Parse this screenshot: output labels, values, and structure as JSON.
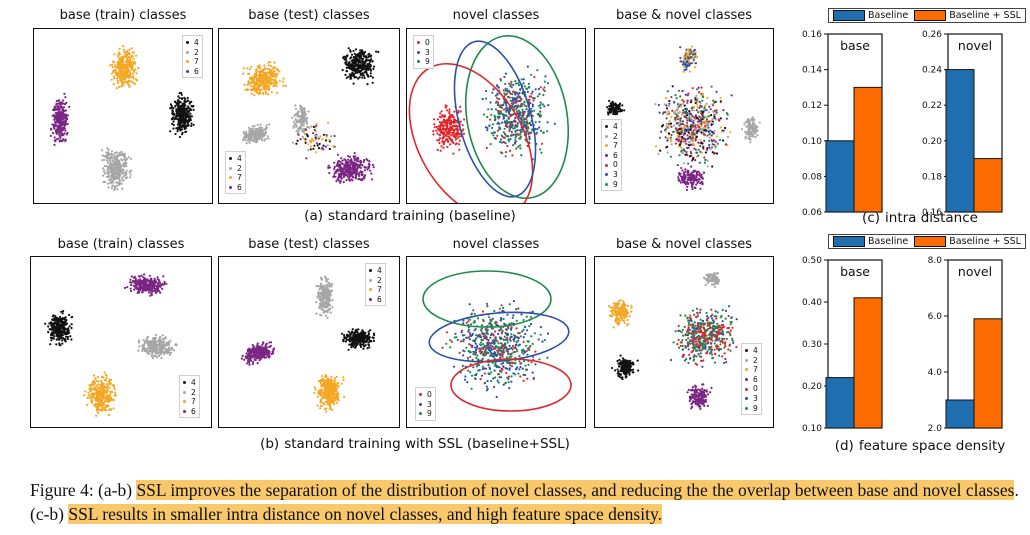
{
  "row_a": {
    "titles": [
      "base (train) classes",
      "base (test) classes",
      "novel classes",
      "base & novel classes"
    ],
    "subcaption_tag": "(a)",
    "subcaption_text": "standard training (baseline)"
  },
  "row_b": {
    "titles": [
      "base (train) classes",
      "base (test) classes",
      "novel classes",
      "base & novel classes"
    ],
    "subcaption_tag": "(b)",
    "subcaption_text": "standard training with SSL (baseline+SSL)"
  },
  "legends": {
    "base": [
      "4",
      "2",
      "7",
      "6"
    ],
    "novel": [
      "0",
      "3",
      "9"
    ],
    "all": [
      "4",
      "2",
      "7",
      "6",
      "0",
      "3",
      "9"
    ]
  },
  "class_colors": {
    "4": "#111111",
    "2": "#a6a6a6",
    "7": "#f5a623",
    "6": "#7b2585",
    "0": "#e0262c",
    "3": "#2c52a8",
    "9": "#1e8a4c"
  },
  "bar_legend": {
    "baseline": "Baseline",
    "ssl": "Baseline + SSL",
    "baseline_color": "#1f6fb0",
    "ssl_color": "#fb6b00"
  },
  "chart_c": {
    "subcaption_tag": "(c)",
    "subcaption_text": "intra distance"
  },
  "chart_d": {
    "subcaption_tag": "(d)",
    "subcaption_text": "feature space density"
  },
  "chart_data": [
    {
      "type": "bar",
      "title": "base",
      "categories": [
        "base"
      ],
      "series": [
        {
          "name": "Baseline",
          "values": [
            0.1
          ]
        },
        {
          "name": "Baseline + SSL",
          "values": [
            0.13
          ]
        }
      ],
      "ylim": [
        0.06,
        0.16
      ],
      "yticks": [
        "0.06",
        "0.08",
        "0.10",
        "0.12",
        "0.14",
        "0.16"
      ],
      "legend": "top"
    },
    {
      "type": "bar",
      "title": "novel",
      "categories": [
        "novel"
      ],
      "series": [
        {
          "name": "Baseline",
          "values": [
            0.24
          ]
        },
        {
          "name": "Baseline + SSL",
          "values": [
            0.19
          ]
        }
      ],
      "ylim": [
        0.16,
        0.26
      ],
      "yticks": [
        "0.16",
        "0.18",
        "0.20",
        "0.22",
        "0.24",
        "0.26"
      ],
      "legend": "top"
    },
    {
      "type": "bar",
      "title": "base",
      "categories": [
        "base"
      ],
      "series": [
        {
          "name": "Baseline",
          "values": [
            0.22
          ]
        },
        {
          "name": "Baseline + SSL",
          "values": [
            0.41
          ]
        }
      ],
      "ylim": [
        0.1,
        0.5
      ],
      "yticks": [
        "0.10",
        "0.20",
        "0.30",
        "0.40",
        "0.50"
      ],
      "legend": "top"
    },
    {
      "type": "bar",
      "title": "novel",
      "categories": [
        "novel"
      ],
      "series": [
        {
          "name": "Baseline",
          "values": [
            3.0
          ]
        },
        {
          "name": "Baseline + SSL",
          "values": [
            5.9
          ]
        }
      ],
      "ylim": [
        2.0,
        8.0
      ],
      "yticks": [
        "2.0",
        "4.0",
        "6.0",
        "8.0"
      ],
      "legend": "top"
    }
  ],
  "caption": {
    "p1": "Figure 4: (a-b) ",
    "h1": "SSL improves the separation of the distribution of novel classes, and reducing the the overlap between base and novel classes",
    "p2": ". (c-b) ",
    "h2": "SSL results in smaller intra distance on novel classes, and high feature space density."
  }
}
